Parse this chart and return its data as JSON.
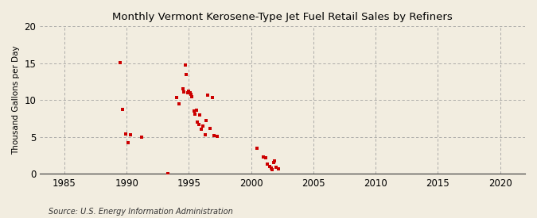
{
  "title": "Monthly Vermont Kerosene-Type Jet Fuel Retail Sales by Refiners",
  "ylabel": "Thousand Gallons per Day",
  "source": "Source: U.S. Energy Information Administration",
  "background_color": "#f2ede0",
  "plot_bg_color": "#f2ede0",
  "dot_color": "#cc0000",
  "xlim": [
    1983,
    2022
  ],
  "ylim": [
    0,
    20
  ],
  "xticks": [
    1985,
    1990,
    1995,
    2000,
    2005,
    2010,
    2015,
    2020
  ],
  "yticks": [
    0,
    5,
    10,
    15,
    20
  ],
  "data_points": [
    [
      1989.5,
      15.1
    ],
    [
      1989.7,
      8.8
    ],
    [
      1989.9,
      5.4
    ],
    [
      1990.1,
      4.2
    ],
    [
      1990.3,
      5.3
    ],
    [
      1991.2,
      5.0
    ],
    [
      1993.3,
      0.0
    ],
    [
      1994.0,
      10.4
    ],
    [
      1994.2,
      9.5
    ],
    [
      1994.5,
      11.5
    ],
    [
      1994.6,
      11.1
    ],
    [
      1994.7,
      14.8
    ],
    [
      1994.8,
      13.5
    ],
    [
      1994.9,
      11.0
    ],
    [
      1995.0,
      11.2
    ],
    [
      1995.1,
      11.0
    ],
    [
      1995.15,
      10.8
    ],
    [
      1995.25,
      10.5
    ],
    [
      1995.4,
      8.5
    ],
    [
      1995.5,
      8.1
    ],
    [
      1995.6,
      8.6
    ],
    [
      1995.7,
      7.0
    ],
    [
      1995.8,
      6.7
    ],
    [
      1995.9,
      8.0
    ],
    [
      1996.0,
      6.1
    ],
    [
      1996.15,
      6.5
    ],
    [
      1996.3,
      5.3
    ],
    [
      1996.4,
      7.3
    ],
    [
      1996.5,
      10.7
    ],
    [
      1996.7,
      6.2
    ],
    [
      1996.9,
      10.4
    ],
    [
      1997.0,
      5.2
    ],
    [
      1997.3,
      5.1
    ],
    [
      2000.5,
      3.5
    ],
    [
      2001.0,
      2.3
    ],
    [
      2001.2,
      2.2
    ],
    [
      2001.3,
      1.3
    ],
    [
      2001.5,
      1.0
    ],
    [
      2001.6,
      0.8
    ],
    [
      2001.7,
      0.6
    ],
    [
      2001.8,
      1.5
    ],
    [
      2001.9,
      1.8
    ],
    [
      2002.0,
      0.9
    ],
    [
      2002.2,
      0.7
    ]
  ]
}
